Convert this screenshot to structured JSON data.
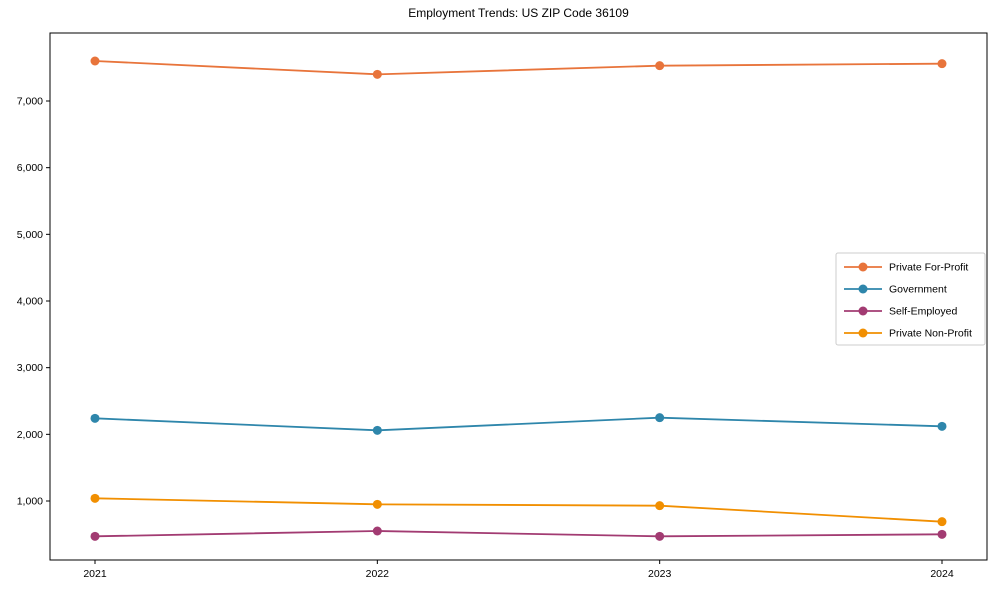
{
  "chart_data": {
    "type": "line",
    "title": "Employment Trends: US ZIP Code 36109",
    "x": [
      "2021",
      "2022",
      "2023",
      "2024"
    ],
    "series": [
      {
        "name": "Private For-Profit",
        "color": "#E8743B",
        "values": [
          7600,
          7400,
          7530,
          7560
        ]
      },
      {
        "name": "Government",
        "color": "#2E86AB",
        "values": [
          2240,
          2060,
          2250,
          2120
        ]
      },
      {
        "name": "Self-Employed",
        "color": "#A23B72",
        "values": [
          470,
          550,
          470,
          500
        ]
      },
      {
        "name": "Private Non-Profit",
        "color": "#F18F01",
        "values": [
          1040,
          950,
          930,
          690
        ]
      }
    ],
    "xtick_labels": [
      "2021",
      "2022",
      "2023",
      "2024"
    ],
    "yticks": [
      1000,
      2000,
      3000,
      4000,
      5000,
      6000,
      7000
    ],
    "ytick_labels": [
      "1,000",
      "2,000",
      "3,000",
      "4,000",
      "5,000",
      "6,000",
      "7,000"
    ],
    "ylim": [
      115,
      8020
    ],
    "grid": false,
    "legend_position": "center-right",
    "marker": "circle",
    "axis_color": "#000000"
  }
}
